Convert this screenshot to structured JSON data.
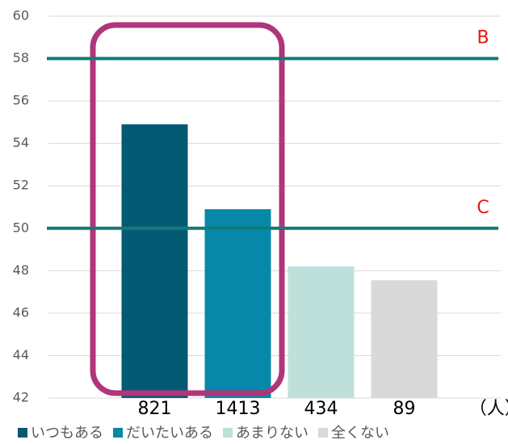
{
  "chart_data": {
    "type": "bar",
    "categories": [
      "いつもある",
      "だいたいある",
      "あまりない",
      "全くない"
    ],
    "values": [
      54.9,
      50.9,
      48.2,
      47.55
    ],
    "colors": [
      "#045a73",
      "#0788a8",
      "#bde0da",
      "#d9d9d9"
    ],
    "counts": [
      821,
      1413,
      434,
      89
    ],
    "count_unit": "（人）",
    "reference_lines": [
      {
        "label": "B",
        "value": 58
      },
      {
        "label": "C",
        "value": 50
      }
    ],
    "reference_color": "#127a77",
    "ylim": [
      42,
      60
    ],
    "yticks": [
      42,
      44,
      46,
      48,
      50,
      52,
      54,
      56,
      58,
      60
    ],
    "grid": true
  }
}
